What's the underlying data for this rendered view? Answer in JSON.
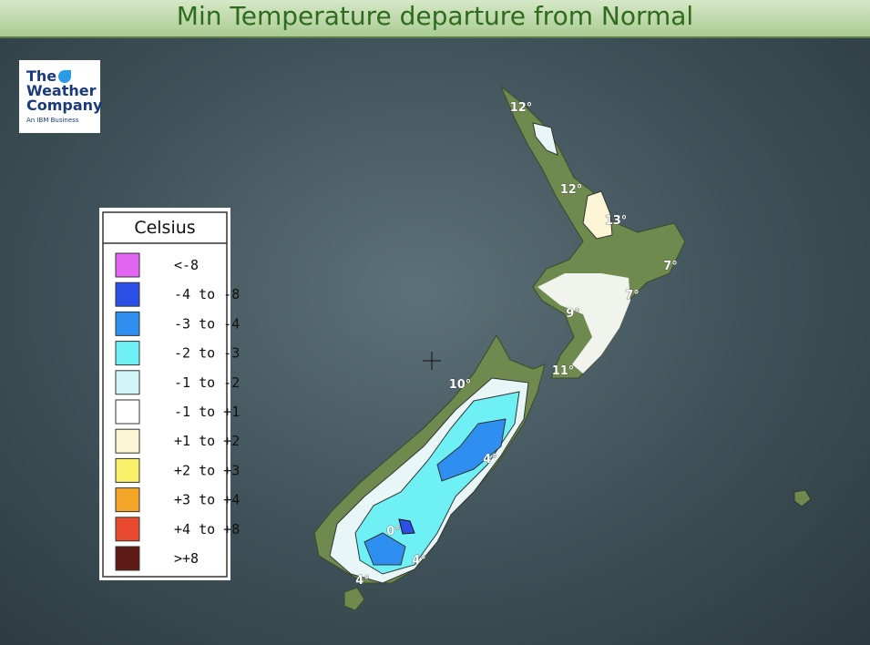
{
  "header": {
    "title": "Min Temperature departure from Normal"
  },
  "logo": {
    "line1": "The",
    "line2": "Weather",
    "line3": "Company",
    "tagline": "An IBM Business"
  },
  "legend": {
    "title": "Celsius",
    "items": [
      {
        "label": "<-8",
        "color": "#e366f2"
      },
      {
        "label": "-4 to -8",
        "color": "#2c4fe8"
      },
      {
        "label": "-3 to -4",
        "color": "#2f8ff0"
      },
      {
        "label": "-2 to -3",
        "color": "#6ff0f5"
      },
      {
        "label": "-1 to -2",
        "color": "#d2f6f8"
      },
      {
        "label": "-1 to +1",
        "color": "#ffffff"
      },
      {
        "label": "+1 to +2",
        "color": "#fdf6d6"
      },
      {
        "label": "+2 to +3",
        "color": "#fbf06a"
      },
      {
        "label": "+3 to +4",
        "color": "#f5a628"
      },
      {
        "label": "+4 to +8",
        "color": "#e84a30"
      },
      {
        "label": ">+8",
        "color": "#5e1a14"
      }
    ]
  },
  "map_labels": [
    "12°",
    "12°",
    "13°",
    "7°",
    "7°",
    "9°",
    "11°",
    "10°",
    "4°",
    "0°",
    "4°",
    "4°"
  ]
}
